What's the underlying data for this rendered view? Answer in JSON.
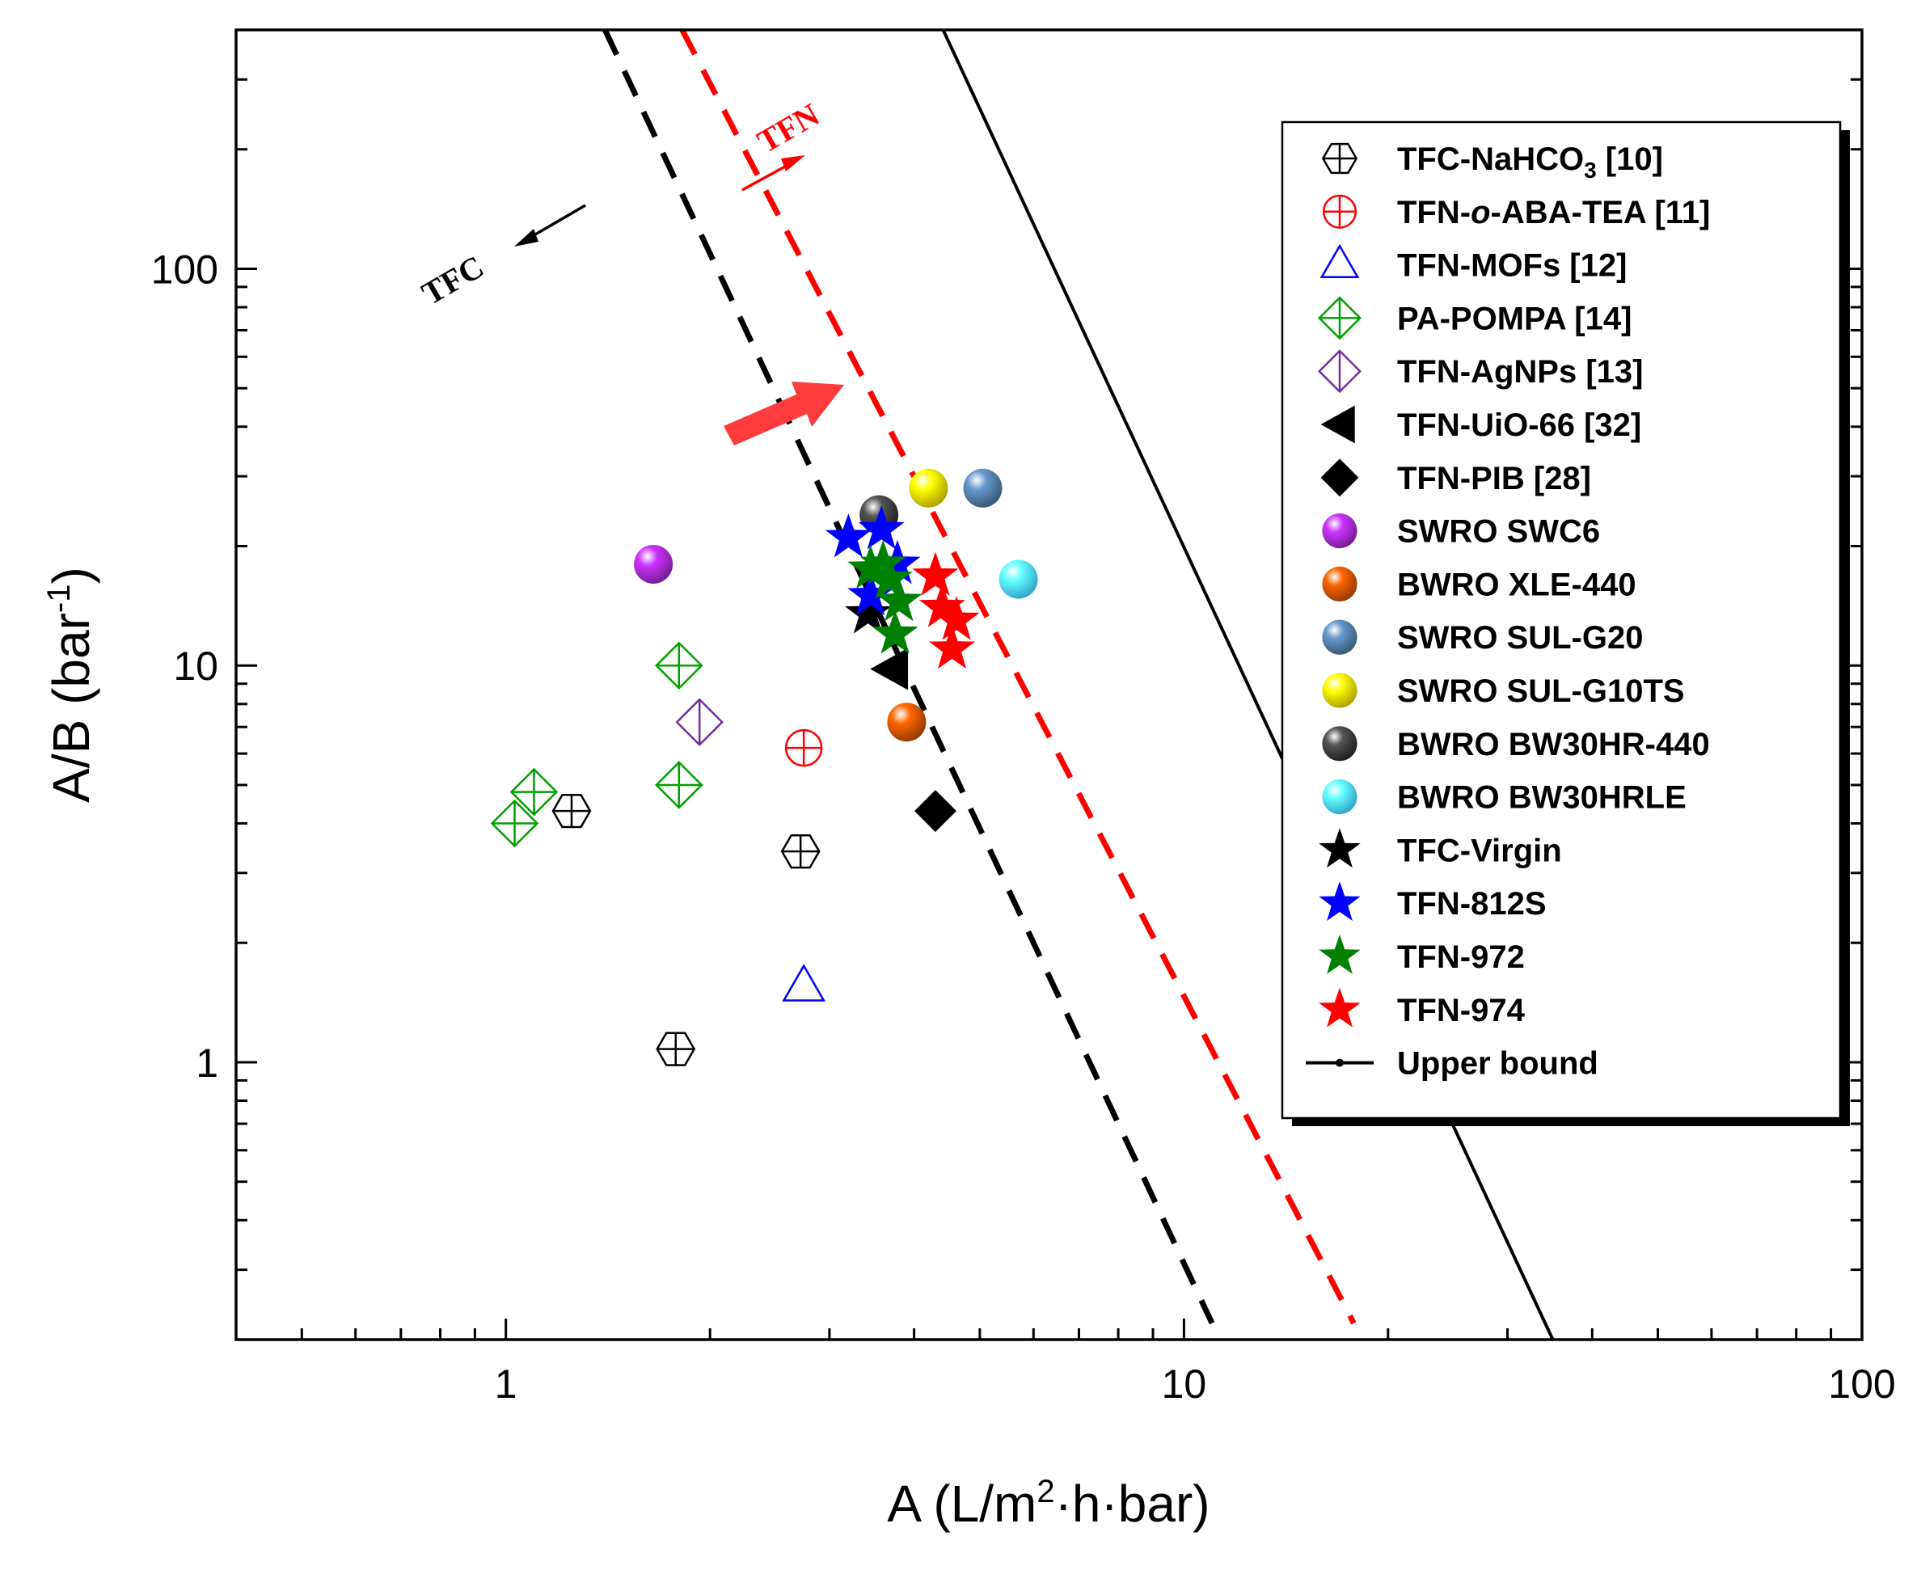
{
  "chart_data": {
    "type": "scatter",
    "xscale": "log",
    "yscale": "log",
    "xlim": [
      0.4,
      100
    ],
    "ylim": [
      0.2,
      400
    ],
    "xticks": [
      1,
      10,
      100
    ],
    "yticks": [
      1,
      10,
      100
    ],
    "xlabel": {
      "pre": "A (L/m",
      "sup": "2",
      "post": "·h·bar)"
    },
    "ylabel": {
      "pre": "A/B (bar",
      "sup": "-1",
      "post": ")"
    },
    "tick_labels": {
      "x": [
        "1",
        "10",
        "100"
      ],
      "y": [
        "1",
        "10",
        "100"
      ]
    },
    "annotations": {
      "tfc": "TFC",
      "tfn": "TFN"
    },
    "lines": [
      {
        "name": "Upper bound",
        "style": "solid",
        "color": "#000000",
        "points": [
          [
            4.2,
            480
          ],
          [
            35,
            0.2
          ]
        ]
      },
      {
        "name": "TFC trend",
        "style": "dashed",
        "color": "#000000",
        "points": [
          [
            1.4,
            400
          ],
          [
            11,
            0.22
          ]
        ]
      },
      {
        "name": "TFN trend",
        "style": "dashed",
        "color": "#ff0000",
        "points": [
          [
            1.82,
            400
          ],
          [
            17.8,
            0.22
          ]
        ]
      }
    ],
    "series": [
      {
        "name": "TFC-NaHCO3 [10]",
        "label_main": "TFC-NaHCO",
        "label_sub": "3",
        "label_tail": " [10]",
        "marker": "hex-cross",
        "color": "#000000",
        "points": [
          [
            1.25,
            4.3
          ],
          [
            1.78,
            1.08
          ],
          [
            2.72,
            3.4
          ]
        ]
      },
      {
        "name": "TFN-o-ABA-TEA [11]",
        "label_main": "TFN-",
        "label_ital": "o",
        "label_tail": "-ABA-TEA [11]",
        "marker": "circle-cross",
        "color": "#ff0000",
        "points": [
          [
            2.75,
            6.2
          ]
        ]
      },
      {
        "name": "TFN-MOFs [12]",
        "marker": "triangle",
        "color": "#0000ff",
        "points": [
          [
            2.75,
            1.55
          ]
        ]
      },
      {
        "name": "PA-POMPA [14]",
        "marker": "diamond-cross",
        "color": "#00a000",
        "points": [
          [
            1.03,
            4.0
          ],
          [
            1.1,
            4.8
          ],
          [
            1.8,
            10.0
          ],
          [
            1.8,
            5.0
          ]
        ]
      },
      {
        "name": "TFN-AgNPs [13]",
        "marker": "diamond-line",
        "color": "#7030a0",
        "points": [
          [
            1.93,
            7.2
          ]
        ]
      },
      {
        "name": "TFN-UiO-66 [32]",
        "marker": "left-triangle",
        "color": "#000000",
        "points": [
          [
            3.7,
            9.8
          ]
        ]
      },
      {
        "name": "TFN-PIB [28]",
        "marker": "diamond",
        "color": "#000000",
        "points": [
          [
            4.3,
            4.3
          ]
        ]
      },
      {
        "name": "SWRO SWC6",
        "marker": "sphere",
        "color": "#cc33ff",
        "points": [
          [
            1.65,
            18.0
          ]
        ]
      },
      {
        "name": "BWRO XLE-440",
        "marker": "sphere",
        "color": "#ff6600",
        "points": [
          [
            3.9,
            7.2
          ]
        ]
      },
      {
        "name": "SWRO SUL-G20",
        "marker": "sphere",
        "color": "#6699cc",
        "points": [
          [
            5.05,
            28.0
          ]
        ]
      },
      {
        "name": "SWRO SUL-G10TS",
        "marker": "sphere",
        "color": "#ffff00",
        "points": [
          [
            4.2,
            28.0
          ]
        ]
      },
      {
        "name": "BWRO BW30HR-440",
        "marker": "sphere",
        "color": "#555555",
        "points": [
          [
            3.55,
            24.0
          ]
        ]
      },
      {
        "name": "BWRO BW30HRLE",
        "marker": "sphere",
        "color": "#66ffff",
        "points": [
          [
            5.7,
            16.5
          ]
        ]
      },
      {
        "name": "TFC-Virgin",
        "marker": "star",
        "color": "#000000",
        "points": [
          [
            3.42,
            13.5
          ]
        ]
      },
      {
        "name": "TFN-812S",
        "marker": "star",
        "color": "#0000ff",
        "points": [
          [
            3.2,
            21.0
          ],
          [
            3.45,
            15.0
          ],
          [
            3.58,
            22.0
          ],
          [
            3.78,
            18.0
          ]
        ]
      },
      {
        "name": "TFN-972",
        "marker": "star",
        "color": "#008000",
        "points": [
          [
            3.45,
            17.5
          ],
          [
            3.6,
            18.0
          ],
          [
            3.68,
            16.5
          ],
          [
            3.8,
            14.5
          ],
          [
            3.75,
            12.0
          ]
        ]
      },
      {
        "name": "TFN-974",
        "marker": "star",
        "color": "#ff0000",
        "points": [
          [
            4.3,
            16.8
          ],
          [
            4.4,
            14.0
          ],
          [
            4.62,
            13.0
          ],
          [
            4.55,
            11.0
          ]
        ]
      },
      {
        "name": "Upper bound",
        "marker": "line",
        "color": "#000000",
        "points": []
      }
    ]
  }
}
